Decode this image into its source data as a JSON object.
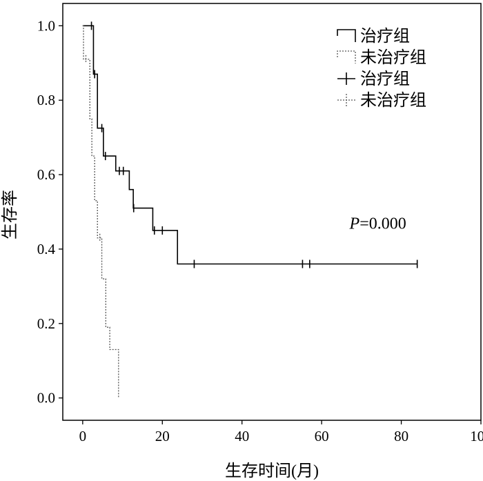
{
  "chart_data": {
    "type": "line",
    "subtype": "kaplan-meier survival curve",
    "xlabel": "生存时间(月)",
    "ylabel": "生存率",
    "xlim": [
      -5,
      100
    ],
    "ylim": [
      -0.06,
      1.06
    ],
    "x_ticks": [
      0,
      20,
      40,
      60,
      80,
      100
    ],
    "y_ticks": [
      0.0,
      0.2,
      0.4,
      0.6,
      0.8,
      1.0
    ],
    "x_tick_labels": [
      "0",
      "20",
      "40",
      "60",
      "80",
      "100"
    ],
    "y_tick_labels": [
      "0.0",
      "0.2",
      "0.4",
      "0.6",
      "0.8",
      "1.0"
    ],
    "grid": false,
    "legend_position": "top-right",
    "legend": [
      {
        "label": "治疗组",
        "style": "solid",
        "marker": "step"
      },
      {
        "label": "未治疗组",
        "style": "dotted",
        "marker": "step"
      },
      {
        "label": "治疗组",
        "style": "solid",
        "marker": "censor"
      },
      {
        "label": "未治疗组",
        "style": "dotted",
        "marker": "censor"
      }
    ],
    "annotation": {
      "italic": "P",
      "rest": "=0.000",
      "x": 67,
      "y": 0.455
    },
    "series": [
      {
        "name": "治疗组",
        "style": "solid",
        "steps": [
          [
            0,
            1.0
          ],
          [
            2.7,
            0.87
          ],
          [
            3.7,
            0.725
          ],
          [
            5.2,
            0.65
          ],
          [
            8.3,
            0.61
          ],
          [
            11.7,
            0.56
          ],
          [
            12.7,
            0.51
          ],
          [
            17.6,
            0.45
          ],
          [
            23.8,
            0.36
          ],
          [
            84,
            0.36
          ]
        ],
        "censored": [
          [
            2.2,
            1.0
          ],
          [
            3.0,
            0.87
          ],
          [
            4.8,
            0.725
          ],
          [
            5.7,
            0.65
          ],
          [
            9.2,
            0.61
          ],
          [
            10.2,
            0.61
          ],
          [
            12.8,
            0.51
          ],
          [
            18.0,
            0.45
          ],
          [
            20.0,
            0.45
          ],
          [
            28.0,
            0.36
          ],
          [
            55.2,
            0.36
          ],
          [
            57.0,
            0.36
          ],
          [
            84.0,
            0.36
          ]
        ]
      },
      {
        "name": "未治疗组",
        "style": "dotted",
        "steps": [
          [
            0,
            1.0
          ],
          [
            0.2,
            0.91
          ],
          [
            1.8,
            0.75
          ],
          [
            2.3,
            0.65
          ],
          [
            3.0,
            0.53
          ],
          [
            3.7,
            0.43
          ],
          [
            4.8,
            0.32
          ],
          [
            5.8,
            0.19
          ],
          [
            6.8,
            0.13
          ],
          [
            9.0,
            0.0
          ]
        ],
        "censored": [
          [
            0.8,
            0.91
          ],
          [
            4.3,
            0.43
          ]
        ]
      }
    ]
  }
}
